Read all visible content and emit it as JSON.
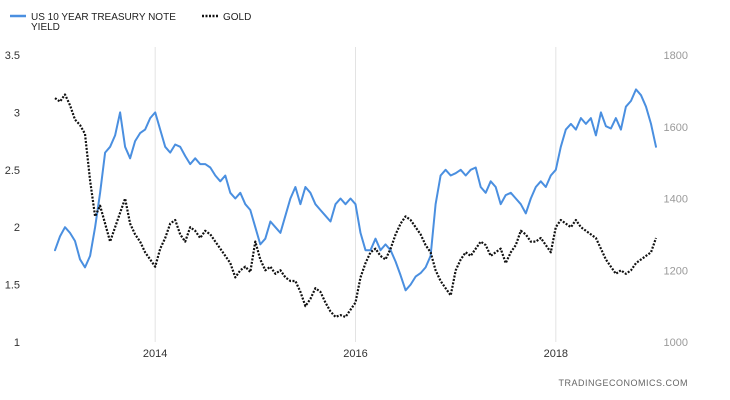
{
  "chart_data": {
    "type": "line",
    "legend": {
      "position": "top-left",
      "entries": [
        {
          "key": "yield",
          "lines": [
            "US 10 YEAR TREASURY NOTE",
            "YIELD"
          ]
        },
        {
          "key": "gold",
          "lines": [
            "GOLD"
          ]
        }
      ]
    },
    "x_ticks": [
      "2014",
      "2016",
      "2018"
    ],
    "y_left": {
      "min": 1,
      "max": 3.5,
      "ticks": [
        "1",
        "1.5",
        "2",
        "2.5",
        "3",
        "3.5"
      ]
    },
    "y_right": {
      "min": 1000,
      "max": 1800,
      "ticks": [
        "1000",
        "1200",
        "1400",
        "1600",
        "1800"
      ]
    },
    "grid": "vertical",
    "series": [
      {
        "name": "US 10 YEAR TREASURY NOTE YIELD",
        "axis": "left",
        "color": "#4a8fe0",
        "style": "solid",
        "x": [
          2013.0,
          2013.05,
          2013.1,
          2013.15,
          2013.2,
          2013.25,
          2013.3,
          2013.35,
          2013.4,
          2013.45,
          2013.5,
          2013.55,
          2013.6,
          2013.65,
          2013.7,
          2013.75,
          2013.8,
          2013.85,
          2013.9,
          2013.95,
          2014.0,
          2014.05,
          2014.1,
          2014.15,
          2014.2,
          2014.25,
          2014.3,
          2014.35,
          2014.4,
          2014.45,
          2014.5,
          2014.55,
          2014.6,
          2014.65,
          2014.7,
          2014.75,
          2014.8,
          2014.85,
          2014.9,
          2014.95,
          2015.0,
          2015.05,
          2015.1,
          2015.15,
          2015.2,
          2015.25,
          2015.3,
          2015.35,
          2015.4,
          2015.45,
          2015.5,
          2015.55,
          2015.6,
          2015.65,
          2015.7,
          2015.75,
          2015.8,
          2015.85,
          2015.9,
          2015.95,
          2016.0,
          2016.05,
          2016.1,
          2016.15,
          2016.2,
          2016.25,
          2016.3,
          2016.35,
          2016.4,
          2016.45,
          2016.5,
          2016.55,
          2016.6,
          2016.65,
          2016.7,
          2016.75,
          2016.8,
          2016.85,
          2016.9,
          2016.95,
          2017.0,
          2017.05,
          2017.1,
          2017.15,
          2017.2,
          2017.25,
          2017.3,
          2017.35,
          2017.4,
          2017.45,
          2017.5,
          2017.55,
          2017.6,
          2017.65,
          2017.7,
          2017.75,
          2017.8,
          2017.85,
          2017.9,
          2017.95,
          2018.0,
          2018.05,
          2018.1,
          2018.15,
          2018.2,
          2018.25,
          2018.3,
          2018.35,
          2018.4,
          2018.45,
          2018.5,
          2018.55,
          2018.6,
          2018.65,
          2018.7,
          2018.75,
          2018.8,
          2018.85,
          2018.9,
          2018.95,
          2019.0
        ],
        "values": [
          1.8,
          1.92,
          2.0,
          1.95,
          1.88,
          1.72,
          1.65,
          1.75,
          2.0,
          2.3,
          2.65,
          2.7,
          2.8,
          3.0,
          2.7,
          2.6,
          2.75,
          2.82,
          2.85,
          2.95,
          3.0,
          2.85,
          2.7,
          2.65,
          2.72,
          2.7,
          2.62,
          2.55,
          2.6,
          2.55,
          2.55,
          2.52,
          2.45,
          2.4,
          2.45,
          2.3,
          2.25,
          2.3,
          2.2,
          2.15,
          2.0,
          1.85,
          1.9,
          2.05,
          2.0,
          1.95,
          2.1,
          2.25,
          2.35,
          2.2,
          2.35,
          2.3,
          2.2,
          2.15,
          2.1,
          2.05,
          2.2,
          2.25,
          2.2,
          2.25,
          2.2,
          1.95,
          1.8,
          1.8,
          1.9,
          1.8,
          1.85,
          1.8,
          1.7,
          1.58,
          1.45,
          1.5,
          1.57,
          1.6,
          1.65,
          1.75,
          2.2,
          2.45,
          2.5,
          2.45,
          2.47,
          2.5,
          2.45,
          2.5,
          2.52,
          2.35,
          2.3,
          2.4,
          2.35,
          2.2,
          2.28,
          2.3,
          2.25,
          2.2,
          2.12,
          2.25,
          2.35,
          2.4,
          2.35,
          2.45,
          2.5,
          2.7,
          2.85,
          2.9,
          2.85,
          2.95,
          2.9,
          2.95,
          2.8,
          3.0,
          2.88,
          2.86,
          2.95,
          2.85,
          3.05,
          3.1,
          3.2,
          3.15,
          3.05,
          2.9,
          2.7
        ]
      },
      {
        "name": "GOLD",
        "axis": "right",
        "color": "#111111",
        "style": "dotted",
        "x": [
          2013.0,
          2013.05,
          2013.1,
          2013.15,
          2013.2,
          2013.25,
          2013.3,
          2013.35,
          2013.4,
          2013.45,
          2013.5,
          2013.55,
          2013.6,
          2013.65,
          2013.7,
          2013.75,
          2013.8,
          2013.85,
          2013.9,
          2013.95,
          2014.0,
          2014.05,
          2014.1,
          2014.15,
          2014.2,
          2014.25,
          2014.3,
          2014.35,
          2014.4,
          2014.45,
          2014.5,
          2014.55,
          2014.6,
          2014.65,
          2014.7,
          2014.75,
          2014.8,
          2014.85,
          2014.9,
          2014.95,
          2015.0,
          2015.05,
          2015.1,
          2015.15,
          2015.2,
          2015.25,
          2015.3,
          2015.35,
          2015.4,
          2015.45,
          2015.5,
          2015.55,
          2015.6,
          2015.65,
          2015.7,
          2015.75,
          2015.8,
          2015.85,
          2015.9,
          2015.95,
          2016.0,
          2016.05,
          2016.1,
          2016.15,
          2016.2,
          2016.25,
          2016.3,
          2016.35,
          2016.4,
          2016.45,
          2016.5,
          2016.55,
          2016.6,
          2016.65,
          2016.7,
          2016.75,
          2016.8,
          2016.85,
          2016.9,
          2016.95,
          2017.0,
          2017.05,
          2017.1,
          2017.15,
          2017.2,
          2017.25,
          2017.3,
          2017.35,
          2017.4,
          2017.45,
          2017.5,
          2017.55,
          2017.6,
          2017.65,
          2017.7,
          2017.75,
          2017.8,
          2017.85,
          2017.9,
          2017.95,
          2018.0,
          2018.05,
          2018.1,
          2018.15,
          2018.2,
          2018.25,
          2018.3,
          2018.35,
          2018.4,
          2018.45,
          2018.5,
          2018.55,
          2018.6,
          2018.65,
          2018.7,
          2018.75,
          2018.8,
          2018.85,
          2018.9,
          2018.95,
          2019.0
        ],
        "values": [
          1680,
          1670,
          1690,
          1660,
          1620,
          1605,
          1580,
          1450,
          1350,
          1380,
          1330,
          1280,
          1320,
          1360,
          1400,
          1330,
          1300,
          1280,
          1250,
          1230,
          1210,
          1260,
          1290,
          1330,
          1340,
          1300,
          1280,
          1320,
          1310,
          1290,
          1310,
          1300,
          1280,
          1260,
          1240,
          1220,
          1180,
          1200,
          1210,
          1195,
          1280,
          1230,
          1200,
          1210,
          1190,
          1200,
          1180,
          1170,
          1170,
          1140,
          1100,
          1120,
          1150,
          1140,
          1110,
          1085,
          1070,
          1075,
          1070,
          1090,
          1110,
          1180,
          1220,
          1250,
          1260,
          1240,
          1230,
          1260,
          1300,
          1330,
          1350,
          1340,
          1320,
          1300,
          1270,
          1250,
          1200,
          1170,
          1150,
          1130,
          1200,
          1230,
          1250,
          1240,
          1260,
          1280,
          1270,
          1240,
          1250,
          1260,
          1220,
          1250,
          1270,
          1310,
          1300,
          1280,
          1280,
          1290,
          1270,
          1250,
          1320,
          1340,
          1330,
          1320,
          1340,
          1320,
          1310,
          1300,
          1290,
          1260,
          1230,
          1210,
          1190,
          1200,
          1190,
          1200,
          1220,
          1230,
          1240,
          1250,
          1290
        ]
      }
    ]
  },
  "credit": "TRADINGECONOMICS.COM"
}
